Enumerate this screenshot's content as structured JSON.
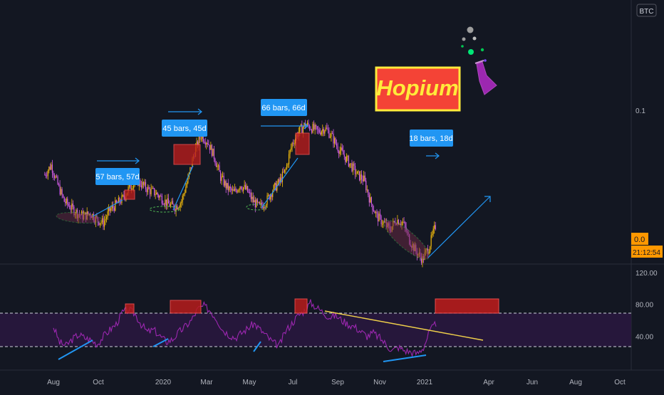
{
  "symbol": "BTC",
  "price_labels": {
    "current": "0.0",
    "countdown": "21:12:54"
  },
  "colors": {
    "background": "#131722",
    "up": "#f0b90b",
    "down": "#d05ce3",
    "rsi": "#9c27b0",
    "accent": "#2196f3",
    "annotation_box": "#b71c1c"
  },
  "annotations": {
    "measures": [
      "57 bars, 57d",
      "45 bars, 45d",
      "66 bars, 66d",
      "18 bars, 18d"
    ],
    "hopium": "Hopium",
    "flask_icon": "flask-icon"
  },
  "chart_data": [
    {
      "type": "line",
      "title": "",
      "xlabel": "",
      "ylabel": "",
      "x_ticks": [
        "Aug",
        "Oct",
        "2020",
        "Mar",
        "May",
        "Jul",
        "Sep",
        "Nov",
        "2021",
        "Apr",
        "Jun",
        "Aug",
        "Oct"
      ],
      "y_ticks": [
        "0.1"
      ],
      "scale": "log",
      "series": [
        {
          "values": [
            0.068,
            0.072,
            0.064,
            0.058,
            0.056,
            0.054,
            0.053,
            0.054,
            0.052,
            0.051,
            0.055,
            0.057,
            0.059,
            0.063,
            0.066,
            0.064,
            0.062,
            0.061,
            0.059,
            0.057,
            0.056,
            0.058,
            0.066,
            0.078,
            0.086,
            0.083,
            0.076,
            0.067,
            0.063,
            0.061,
            0.064,
            0.062,
            0.058,
            0.056,
            0.058,
            0.062,
            0.065,
            0.07,
            0.082,
            0.088,
            0.092,
            0.09,
            0.088,
            0.09,
            0.086,
            0.08,
            0.076,
            0.072,
            0.068,
            0.066,
            0.058,
            0.053,
            0.051,
            0.049,
            0.052,
            0.051,
            0.046,
            0.043,
            0.041,
            0.044,
            0.05
          ]
        }
      ]
    },
    {
      "type": "line",
      "title": "",
      "xlabel": "",
      "ylabel": "",
      "x_ticks": [
        "Aug",
        "Oct",
        "2020",
        "Mar",
        "May",
        "Jul",
        "Sep",
        "Nov",
        "2021",
        "Apr",
        "Jun",
        "Aug",
        "Oct"
      ],
      "y_ticks": [
        "120.00",
        "80.00",
        "40.00"
      ],
      "ylim": [
        0,
        120
      ],
      "bands": {
        "upper": 70,
        "lower": 30
      },
      "series": [
        {
          "values": [
            52,
            32,
            28,
            36,
            42,
            38,
            35,
            30,
            40,
            48,
            55,
            70,
            73,
            68,
            55,
            45,
            48,
            40,
            33,
            36,
            45,
            52,
            60,
            74,
            78,
            72,
            62,
            48,
            42,
            38,
            44,
            50,
            56,
            48,
            40,
            32,
            28,
            46,
            56,
            66,
            72,
            82,
            76,
            70,
            64,
            66,
            60,
            55,
            52,
            46,
            40,
            44,
            38,
            30,
            22,
            26,
            22,
            20,
            18,
            26,
            46,
            56
          ]
        }
      ]
    }
  ]
}
